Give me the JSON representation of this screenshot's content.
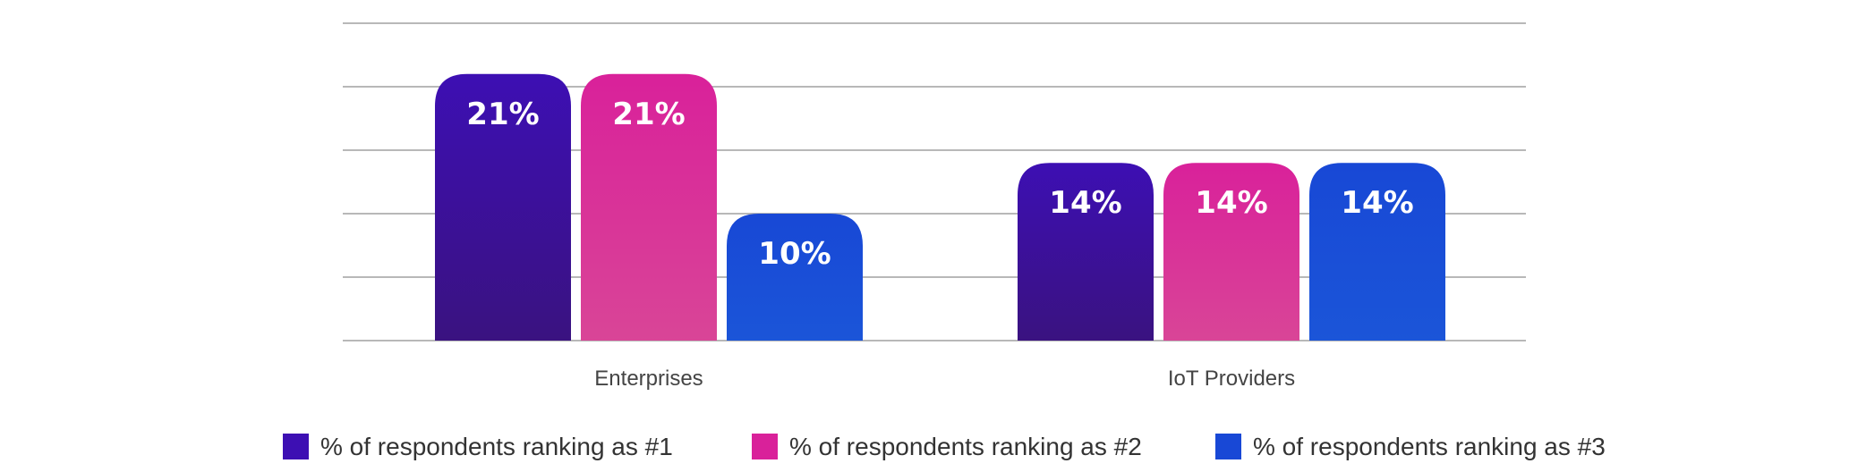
{
  "chart_data": {
    "type": "bar",
    "categories": [
      "Enterprises",
      "IoT Providers"
    ],
    "series": [
      {
        "name": "% of respondents ranking as #1",
        "values": [
          21,
          14
        ],
        "value_labels": [
          "21%",
          "14%"
        ],
        "color_top": "#3d0fb3",
        "color_bottom": "#3a1280"
      },
      {
        "name": "% of respondents ranking as #2",
        "values": [
          21,
          14
        ],
        "value_labels": [
          "21%",
          "14%"
        ],
        "color_top": "#d9219a",
        "color_bottom": "#d94597"
      },
      {
        "name": "% of respondents ranking as #3",
        "values": [
          10,
          14
        ],
        "value_labels": [
          "10%",
          "14%"
        ],
        "color_top": "#1848d6",
        "color_bottom": "#1b55d8"
      }
    ],
    "ylim": [
      0,
      25
    ],
    "gridline_step": 5,
    "grid": true,
    "legend_position": "bottom",
    "title": "",
    "xlabel": "",
    "ylabel": ""
  }
}
